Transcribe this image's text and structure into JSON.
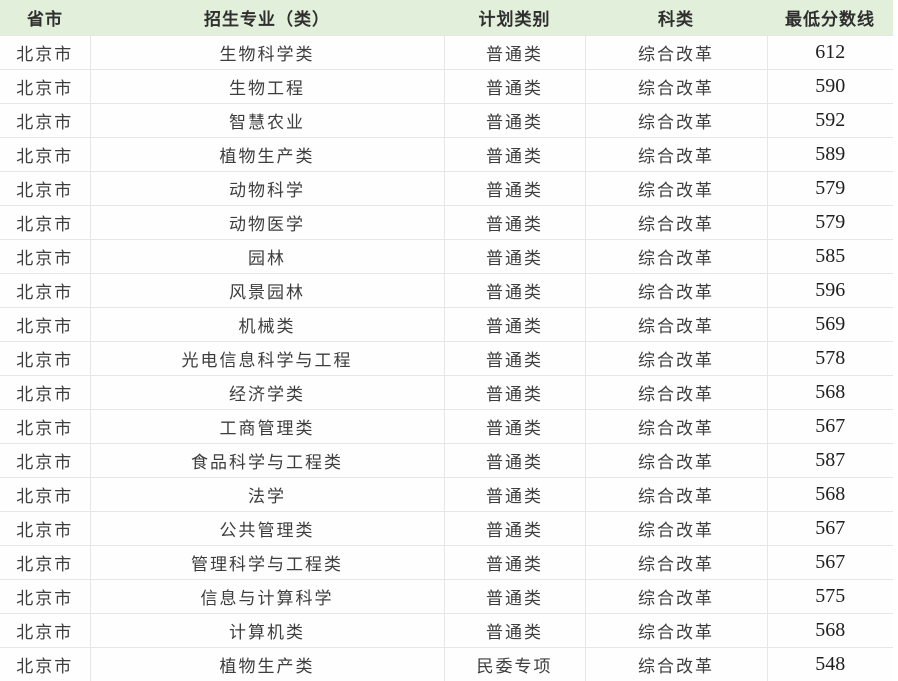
{
  "table": {
    "columns": [
      {
        "key": "province",
        "label": "省市"
      },
      {
        "key": "major",
        "label": "招生专业（类）"
      },
      {
        "key": "plan_type",
        "label": "计划类别"
      },
      {
        "key": "subject_type",
        "label": "科类"
      },
      {
        "key": "min_score",
        "label": "最低分数线"
      }
    ],
    "rows": [
      [
        "北京市",
        "生物科学类",
        "普通类",
        "综合改革",
        "612"
      ],
      [
        "北京市",
        "生物工程",
        "普通类",
        "综合改革",
        "590"
      ],
      [
        "北京市",
        "智慧农业",
        "普通类",
        "综合改革",
        "592"
      ],
      [
        "北京市",
        "植物生产类",
        "普通类",
        "综合改革",
        "589"
      ],
      [
        "北京市",
        "动物科学",
        "普通类",
        "综合改革",
        "579"
      ],
      [
        "北京市",
        "动物医学",
        "普通类",
        "综合改革",
        "579"
      ],
      [
        "北京市",
        "园林",
        "普通类",
        "综合改革",
        "585"
      ],
      [
        "北京市",
        "风景园林",
        "普通类",
        "综合改革",
        "596"
      ],
      [
        "北京市",
        "机械类",
        "普通类",
        "综合改革",
        "569"
      ],
      [
        "北京市",
        "光电信息科学与工程",
        "普通类",
        "综合改革",
        "578"
      ],
      [
        "北京市",
        "经济学类",
        "普通类",
        "综合改革",
        "568"
      ],
      [
        "北京市",
        "工商管理类",
        "普通类",
        "综合改革",
        "567"
      ],
      [
        "北京市",
        "食品科学与工程类",
        "普通类",
        "综合改革",
        "587"
      ],
      [
        "北京市",
        "法学",
        "普通类",
        "综合改革",
        "568"
      ],
      [
        "北京市",
        "公共管理类",
        "普通类",
        "综合改革",
        "567"
      ],
      [
        "北京市",
        "管理科学与工程类",
        "普通类",
        "综合改革",
        "567"
      ],
      [
        "北京市",
        "信息与计算科学",
        "普通类",
        "综合改革",
        "575"
      ],
      [
        "北京市",
        "计算机类",
        "普通类",
        "综合改革",
        "568"
      ],
      [
        "北京市",
        "植物生产类",
        "民委专项",
        "综合改革",
        "548"
      ]
    ]
  },
  "colors": {
    "header_bg": "#e2efda",
    "border": "#e6e6e6",
    "body_text": "#3d3d3d",
    "score_text": "#1f1f1f"
  },
  "chart_data": {
    "type": "table",
    "title": "",
    "columns": [
      "省市",
      "招生专业（类）",
      "计划类别",
      "科类",
      "最低分数线"
    ],
    "rows": [
      [
        "北京市",
        "生物科学类",
        "普通类",
        "综合改革",
        612
      ],
      [
        "北京市",
        "生物工程",
        "普通类",
        "综合改革",
        590
      ],
      [
        "北京市",
        "智慧农业",
        "普通类",
        "综合改革",
        592
      ],
      [
        "北京市",
        "植物生产类",
        "普通类",
        "综合改革",
        589
      ],
      [
        "北京市",
        "动物科学",
        "普通类",
        "综合改革",
        579
      ],
      [
        "北京市",
        "动物医学",
        "普通类",
        "综合改革",
        579
      ],
      [
        "北京市",
        "园林",
        "普通类",
        "综合改革",
        585
      ],
      [
        "北京市",
        "风景园林",
        "普通类",
        "综合改革",
        596
      ],
      [
        "北京市",
        "机械类",
        "普通类",
        "综合改革",
        569
      ],
      [
        "北京市",
        "光电信息科学与工程",
        "普通类",
        "综合改革",
        578
      ],
      [
        "北京市",
        "经济学类",
        "普通类",
        "综合改革",
        568
      ],
      [
        "北京市",
        "工商管理类",
        "普通类",
        "综合改革",
        567
      ],
      [
        "北京市",
        "食品科学与工程类",
        "普通类",
        "综合改革",
        587
      ],
      [
        "北京市",
        "法学",
        "普通类",
        "综合改革",
        568
      ],
      [
        "北京市",
        "公共管理类",
        "普通类",
        "综合改革",
        567
      ],
      [
        "北京市",
        "管理科学与工程类",
        "普通类",
        "综合改革",
        567
      ],
      [
        "北京市",
        "信息与计算科学",
        "普通类",
        "综合改革",
        575
      ],
      [
        "北京市",
        "计算机类",
        "普通类",
        "综合改革",
        568
      ],
      [
        "北京市",
        "植物生产类",
        "民委专项",
        "综合改革",
        548
      ]
    ]
  }
}
